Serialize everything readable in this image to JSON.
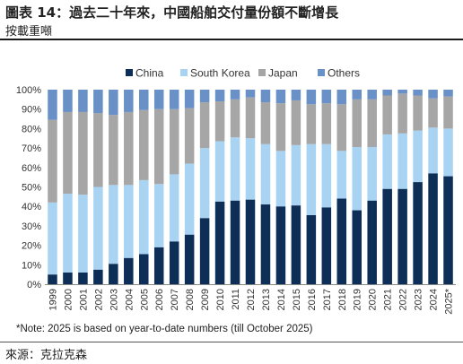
{
  "header": {
    "title": "圖表 14：過去二十年來，中國船舶交付量份額不斷增長",
    "subtitle": "按載重噸"
  },
  "footer": {
    "note": "*Note: 2025 is based on year-to-date numbers (till October 2025)",
    "source": "來源：克拉克森"
  },
  "colors": {
    "China": "#0d2e57",
    "South Korea": "#a9d3f2",
    "Japan": "#a6a6a6",
    "Others": "#6a91c7"
  },
  "chart_data": {
    "type": "bar",
    "stacked": true,
    "title": "",
    "xlabel": "",
    "ylabel": "",
    "ylim": [
      0,
      100
    ],
    "y_tick_format": "percent",
    "y_ticks": [
      0,
      10,
      20,
      30,
      40,
      50,
      60,
      70,
      80,
      90,
      100
    ],
    "grid": false,
    "legend_position": "top",
    "categories": [
      "1999",
      "2000",
      "2001",
      "2002",
      "2003",
      "2004",
      "2005",
      "2006",
      "2007",
      "2008",
      "2009",
      "2010",
      "2011",
      "2012",
      "2013",
      "2014",
      "2015",
      "2016",
      "2017",
      "2018",
      "2019",
      "2020",
      "2021",
      "2022",
      "2023",
      "2024",
      "2025*"
    ],
    "series": [
      {
        "name": "China",
        "values": [
          5,
          6,
          6,
          7.5,
          10.5,
          13.5,
          15.5,
          19,
          22,
          25.5,
          34,
          42.5,
          43,
          43.5,
          41,
          40,
          40.5,
          35.5,
          39.5,
          44,
          38,
          43,
          49,
          49,
          52.5,
          57,
          55.5
        ]
      },
      {
        "name": "South Korea",
        "values": [
          37,
          40.5,
          40,
          42.5,
          40.5,
          37.5,
          38,
          32.5,
          34.5,
          36.5,
          36,
          31,
          32.5,
          31.5,
          31,
          28.5,
          31,
          36.5,
          32.5,
          24.5,
          32.5,
          27.5,
          28,
          28.5,
          26.5,
          23.5,
          24.5
        ]
      },
      {
        "name": "Japan",
        "values": [
          42.5,
          42,
          42.5,
          38,
          36,
          37.5,
          36,
          38.5,
          33.5,
          28.5,
          23.5,
          20.5,
          19.5,
          21,
          21.5,
          24.5,
          23,
          20.5,
          21,
          24,
          24.5,
          24.5,
          20,
          20.5,
          18,
          15,
          16.5
        ]
      },
      {
        "name": "Others",
        "values": [
          15.5,
          11.5,
          11.5,
          12,
          13,
          11.5,
          10.5,
          10,
          10,
          9.5,
          6.5,
          6,
          5,
          4,
          6.5,
          7,
          5.5,
          7.5,
          7,
          7.5,
          5,
          5,
          3,
          2,
          3,
          4.5,
          3.5
        ]
      }
    ]
  }
}
